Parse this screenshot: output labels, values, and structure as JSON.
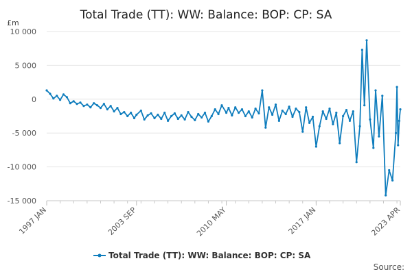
{
  "chart_data": {
    "type": "line",
    "title": "Total Trade (TT): WW: Balance: BOP: CP: SA",
    "unit_label": "£m",
    "ylim": [
      -15000,
      10000
    ],
    "y_ticks": [
      10000,
      5000,
      0,
      -5000,
      -10000,
      -15000
    ],
    "y_tick_labels": [
      "10 000",
      "5 000",
      "0",
      "-5 000",
      "-10 000",
      "-15 000"
    ],
    "x_range": [
      "1997-01",
      "2023-04"
    ],
    "x_ticks": [
      "1997-01",
      "2003-09",
      "2010-05",
      "2017-01",
      "2023-04"
    ],
    "x_tick_labels": [
      "1997 JAN",
      "2003 SEP",
      "2010 MAY",
      "2017 JAN",
      "2023 APR"
    ],
    "grid": true,
    "legend_position": "bottom",
    "source_label": "Source:",
    "series": [
      {
        "name": "Total Trade (TT): WW: Balance: BOP: CP: SA",
        "color": "#0f7dbd",
        "points": [
          [
            "1997-01",
            1300
          ],
          [
            "1997-04",
            800
          ],
          [
            "1997-07",
            100
          ],
          [
            "1997-10",
            500
          ],
          [
            "1998-01",
            -100
          ],
          [
            "1998-04",
            700
          ],
          [
            "1998-07",
            300
          ],
          [
            "1998-10",
            -600
          ],
          [
            "1999-01",
            -300
          ],
          [
            "1999-04",
            -700
          ],
          [
            "1999-07",
            -500
          ],
          [
            "1999-10",
            -1000
          ],
          [
            "2000-01",
            -800
          ],
          [
            "2000-04",
            -1200
          ],
          [
            "2000-07",
            -600
          ],
          [
            "2000-10",
            -900
          ],
          [
            "2001-01",
            -1300
          ],
          [
            "2001-04",
            -700
          ],
          [
            "2001-07",
            -1500
          ],
          [
            "2001-10",
            -1000
          ],
          [
            "2002-01",
            -1800
          ],
          [
            "2002-04",
            -1300
          ],
          [
            "2002-07",
            -2200
          ],
          [
            "2002-10",
            -1900
          ],
          [
            "2003-01",
            -2500
          ],
          [
            "2003-04",
            -2000
          ],
          [
            "2003-07",
            -2800
          ],
          [
            "2003-09",
            -2300
          ],
          [
            "2004-01",
            -1700
          ],
          [
            "2004-04",
            -3000
          ],
          [
            "2004-07",
            -2400
          ],
          [
            "2004-10",
            -2100
          ],
          [
            "2005-01",
            -2800
          ],
          [
            "2005-04",
            -2300
          ],
          [
            "2005-07",
            -2900
          ],
          [
            "2005-10",
            -2000
          ],
          [
            "2006-01",
            -3200
          ],
          [
            "2006-04",
            -2500
          ],
          [
            "2006-07",
            -2100
          ],
          [
            "2006-10",
            -2900
          ],
          [
            "2007-01",
            -2400
          ],
          [
            "2007-04",
            -3000
          ],
          [
            "2007-07",
            -1900
          ],
          [
            "2007-10",
            -2600
          ],
          [
            "2008-01",
            -3100
          ],
          [
            "2008-04",
            -2200
          ],
          [
            "2008-07",
            -2700
          ],
          [
            "2008-10",
            -2000
          ],
          [
            "2009-01",
            -3300
          ],
          [
            "2009-04",
            -2500
          ],
          [
            "2009-07",
            -1500
          ],
          [
            "2009-10",
            -2200
          ],
          [
            "2010-01",
            -900
          ],
          [
            "2010-05",
            -2000
          ],
          [
            "2010-07",
            -1300
          ],
          [
            "2010-10",
            -2400
          ],
          [
            "2011-01",
            -1200
          ],
          [
            "2011-04",
            -2000
          ],
          [
            "2011-07",
            -1500
          ],
          [
            "2011-10",
            -2500
          ],
          [
            "2012-01",
            -1800
          ],
          [
            "2012-04",
            -2700
          ],
          [
            "2012-07",
            -1400
          ],
          [
            "2012-10",
            -2100
          ],
          [
            "2013-01",
            1300
          ],
          [
            "2013-04",
            -4200
          ],
          [
            "2013-07",
            -1200
          ],
          [
            "2013-10",
            -2300
          ],
          [
            "2014-01",
            -800
          ],
          [
            "2014-04",
            -3200
          ],
          [
            "2014-07",
            -1700
          ],
          [
            "2014-10",
            -2200
          ],
          [
            "2015-01",
            -1100
          ],
          [
            "2015-04",
            -2600
          ],
          [
            "2015-07",
            -1400
          ],
          [
            "2015-10",
            -1900
          ],
          [
            "2016-01",
            -4800
          ],
          [
            "2016-04",
            -1200
          ],
          [
            "2016-07",
            -3500
          ],
          [
            "2016-10",
            -2600
          ],
          [
            "2017-01",
            -7000
          ],
          [
            "2017-04",
            -4000
          ],
          [
            "2017-07",
            -1800
          ],
          [
            "2017-10",
            -2900
          ],
          [
            "2018-01",
            -1400
          ],
          [
            "2018-04",
            -3700
          ],
          [
            "2018-07",
            -2000
          ],
          [
            "2018-10",
            -6500
          ],
          [
            "2019-01",
            -2500
          ],
          [
            "2019-04",
            -1600
          ],
          [
            "2019-07",
            -3200
          ],
          [
            "2019-10",
            -1800
          ],
          [
            "2020-01",
            -9300
          ],
          [
            "2020-04",
            -4000
          ],
          [
            "2020-06",
            7300
          ],
          [
            "2020-08",
            -900
          ],
          [
            "2020-10",
            8700
          ],
          [
            "2021-01",
            -3000
          ],
          [
            "2021-04",
            -7200
          ],
          [
            "2021-06",
            1300
          ],
          [
            "2021-09",
            -5500
          ],
          [
            "2021-12",
            500
          ],
          [
            "2022-03",
            -14200
          ],
          [
            "2022-06",
            -10500
          ],
          [
            "2022-09",
            -12000
          ],
          [
            "2022-12",
            -5000
          ],
          [
            "2023-01",
            1800
          ],
          [
            "2023-02",
            -6800
          ],
          [
            "2023-03",
            -3200
          ],
          [
            "2023-04",
            -1500
          ]
        ]
      }
    ]
  }
}
